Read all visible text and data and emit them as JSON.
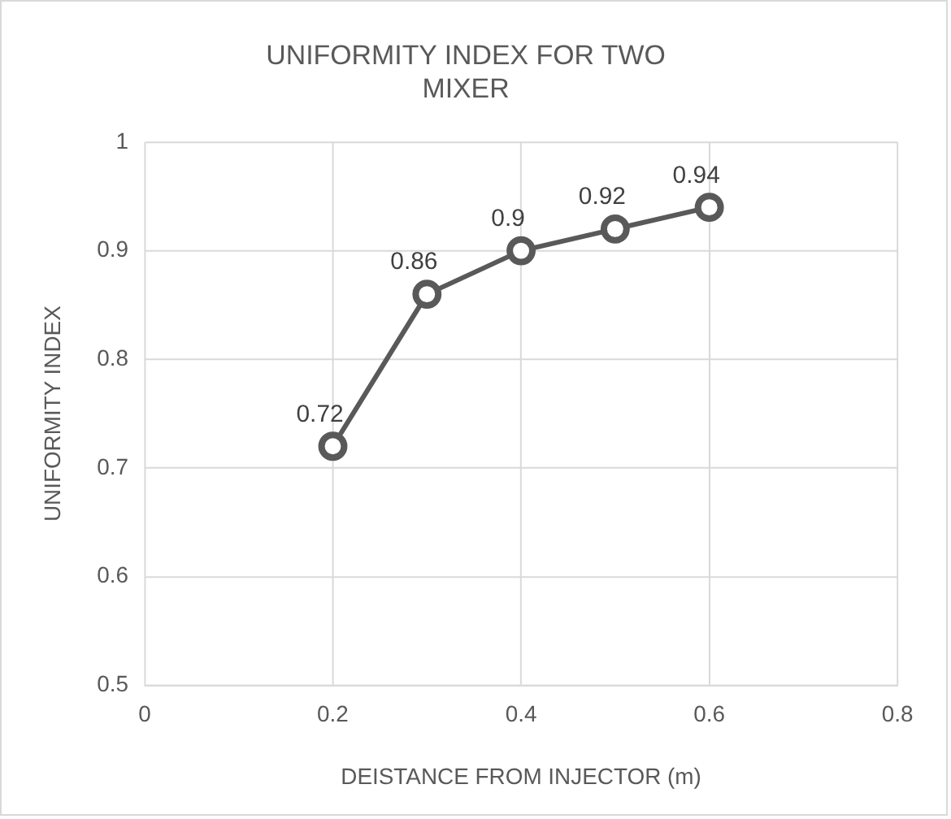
{
  "chart_data": {
    "type": "line",
    "title": "UNIFORMITY INDEX FOR TWO MIXER",
    "xlabel": "DEISTANCE FROM INJECTOR (m)",
    "ylabel": "UNIFORMITY INDEX",
    "x": [
      0.2,
      0.3,
      0.4,
      0.5,
      0.6
    ],
    "series": [
      {
        "color": "#595959",
        "values": [
          0.72,
          0.86,
          0.9,
          0.92,
          0.94
        ]
      }
    ],
    "xlim": [
      0,
      0.8
    ],
    "xticks": [
      0,
      0.2,
      0.4,
      0.6,
      0.8
    ],
    "ylim": [
      0.5,
      1
    ],
    "yticks": [
      0.5,
      0.6,
      0.7,
      0.8,
      0.9,
      1
    ],
    "grid": true,
    "marker": "circle",
    "line_style": "solid",
    "data_labels": true
  }
}
